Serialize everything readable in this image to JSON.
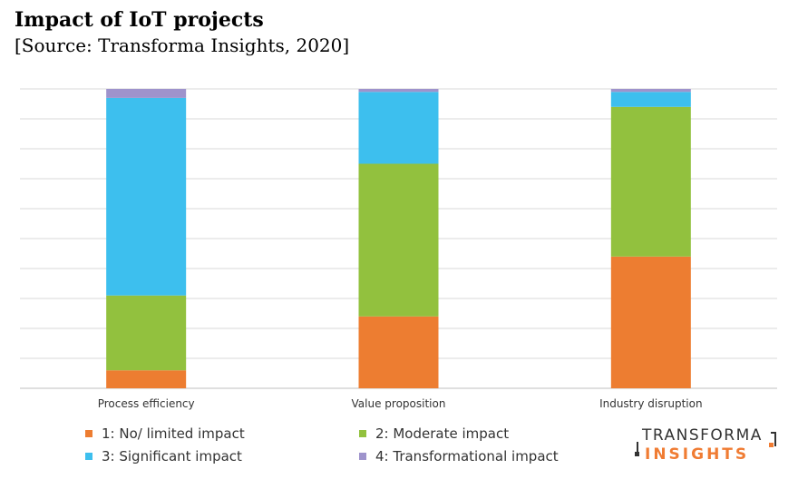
{
  "chart_data": {
    "type": "bar",
    "stacked": true,
    "title": "Impact of IoT projects",
    "subtitle": "[Source: Transforma Insights, 2020]",
    "categories": [
      "Process efficiency",
      "Value proposition",
      "Industry disruption"
    ],
    "series": [
      {
        "name": "1: No/ limited impact",
        "color": "#ed7d31",
        "values": [
          6,
          24,
          44
        ]
      },
      {
        "name": "2: Moderate impact",
        "color": "#92c13e",
        "values": [
          25,
          51,
          50
        ]
      },
      {
        "name": "3: Significant impact",
        "color": "#3dbfee",
        "values": [
          66,
          24,
          5
        ]
      },
      {
        "name": "4: Transformational impact",
        "color": "#9e93cc",
        "values": [
          3,
          1,
          1
        ]
      }
    ],
    "ylim": [
      0,
      100
    ],
    "grid": true,
    "legend": "bottom"
  },
  "logo": {
    "top_text": "TRANSFORMA",
    "bottom_text": "INSIGHTS"
  }
}
